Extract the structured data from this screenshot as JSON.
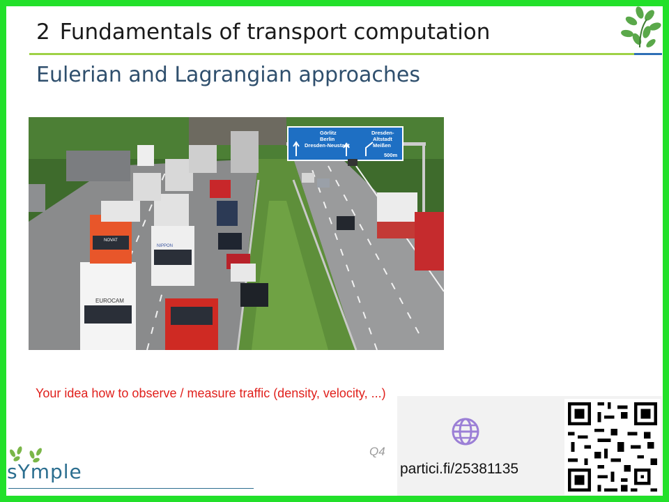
{
  "slide": {
    "section_number": "2",
    "title": "Fundamentals of transport computation",
    "subtitle": "Eulerian and Lagrangian approaches",
    "prompt": "Your idea how to observe / measure traffic (density, velocity, ...)",
    "photo": {
      "sign_lines_left": [
        "Görlitz",
        "Berlin",
        "Dresden-Neustadt"
      ],
      "sign_lines_right": [
        "Dresden-",
        "Altstadt",
        "Meißen"
      ],
      "sign_distance": "500m",
      "truck_labels": [
        "EUROCAM",
        "NOVAT",
        "NIPPON"
      ]
    }
  },
  "participation": {
    "question_label": "Q4",
    "url": "partici.fi/25381135",
    "icon": "globe-icon"
  },
  "branding": {
    "logo_text": "sYmple",
    "colors": {
      "frame": "#22e02a",
      "accent_green": "#9ed146",
      "accent_blue": "#2e6fb5",
      "prompt_red": "#e0201c"
    }
  }
}
